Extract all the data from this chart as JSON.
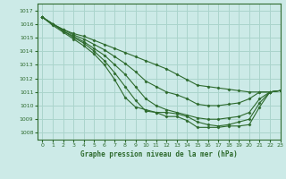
{
  "title": "Graphe pression niveau de la mer (hPa)",
  "bg_color": "#cceae7",
  "grid_color": "#aad4cc",
  "line_color": "#2d6a2d",
  "marker_color": "#2d6a2d",
  "xlim": [
    -0.5,
    23
  ],
  "ylim": [
    1007.5,
    1017.5
  ],
  "yticks": [
    1008,
    1009,
    1010,
    1011,
    1012,
    1013,
    1014,
    1015,
    1016,
    1017
  ],
  "xticks": [
    0,
    1,
    2,
    3,
    4,
    5,
    6,
    7,
    8,
    9,
    10,
    11,
    12,
    13,
    14,
    15,
    16,
    17,
    18,
    19,
    20,
    21,
    22,
    23
  ],
  "series": [
    [
      1016.5,
      1016.0,
      1015.6,
      1015.3,
      1015.1,
      1014.8,
      1014.5,
      1014.2,
      1013.9,
      1013.6,
      1013.3,
      1013.0,
      1012.7,
      1012.3,
      1011.9,
      1011.5,
      1011.4,
      1011.3,
      1011.2,
      1011.1,
      1011.0,
      1011.0,
      1011.0,
      1011.1
    ],
    [
      1016.5,
      1016.0,
      1015.6,
      1015.2,
      1014.9,
      1014.5,
      1014.1,
      1013.6,
      1013.1,
      1012.5,
      1011.8,
      1011.4,
      1011.0,
      1010.8,
      1010.5,
      1010.1,
      1010.0,
      1010.0,
      1010.1,
      1010.2,
      1010.5,
      1011.0,
      1011.0,
      1011.1
    ],
    [
      1016.5,
      1016.0,
      1015.5,
      1015.1,
      1014.7,
      1014.2,
      1013.7,
      1013.0,
      1012.3,
      1011.4,
      1010.5,
      1010.0,
      1009.7,
      1009.5,
      1009.3,
      1009.1,
      1009.0,
      1009.0,
      1009.1,
      1009.2,
      1009.5,
      1010.5,
      1011.0,
      1011.1
    ],
    [
      1016.5,
      1016.0,
      1015.5,
      1015.0,
      1014.6,
      1014.0,
      1013.3,
      1012.4,
      1011.4,
      1010.4,
      1009.6,
      1009.5,
      1009.5,
      1009.4,
      1009.2,
      1008.8,
      1008.6,
      1008.5,
      1008.6,
      1008.8,
      1009.0,
      1010.2,
      1011.0,
      1011.1
    ],
    [
      1016.5,
      1015.9,
      1015.4,
      1014.9,
      1014.4,
      1013.8,
      1013.0,
      1011.9,
      1010.6,
      1009.9,
      1009.7,
      1009.5,
      1009.2,
      1009.2,
      1008.9,
      1008.4,
      1008.4,
      1008.4,
      1008.5,
      1008.5,
      1008.6,
      1009.9,
      1011.0,
      1011.1
    ]
  ]
}
